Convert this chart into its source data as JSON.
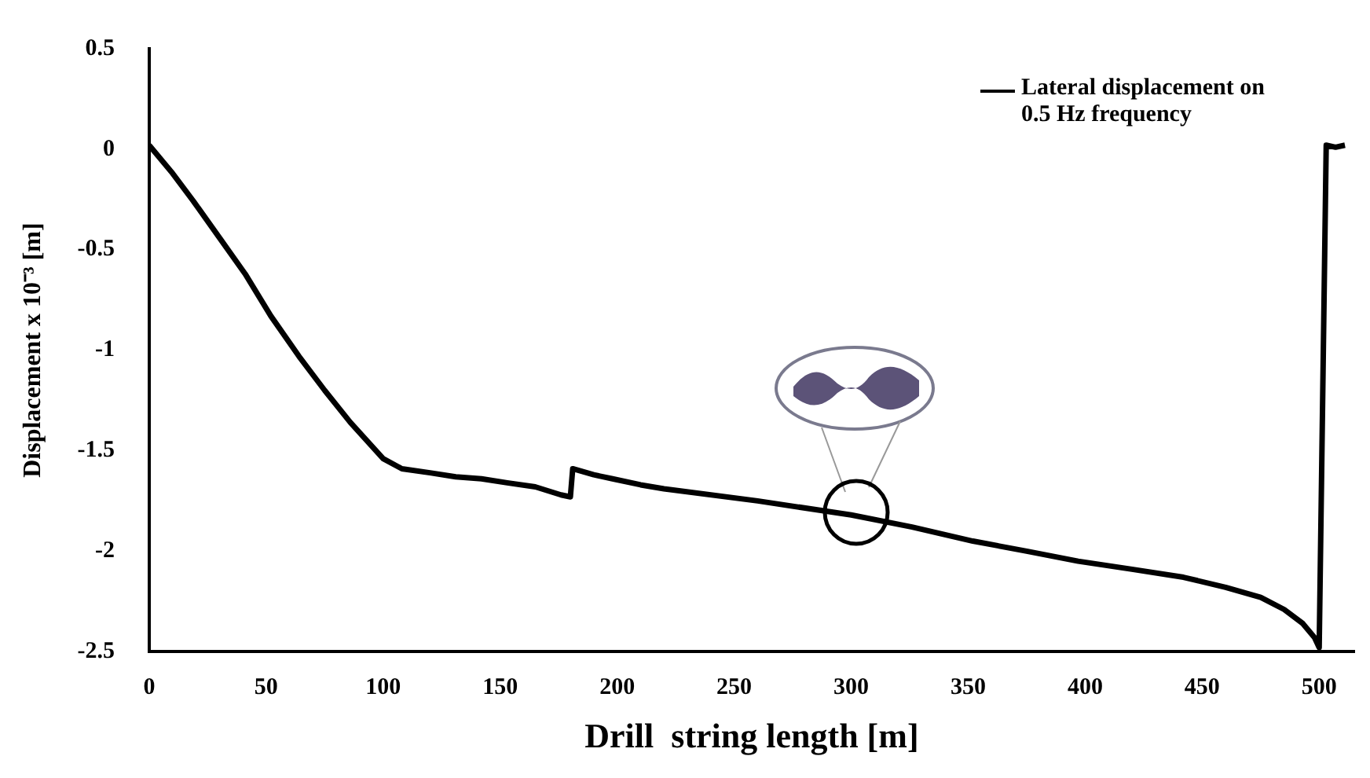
{
  "chart_data": {
    "type": "line",
    "xlabel": "Drill  string length [m]",
    "ylabel": "Displacement x 10⁻³ [m]",
    "xlim": [
      0,
      515
    ],
    "xticks": [
      0,
      50,
      100,
      150,
      200,
      250,
      300,
      350,
      400,
      450,
      500
    ],
    "ylim": [
      -2.5,
      0.5
    ],
    "yticks": [
      -2.5,
      -2,
      -1.5,
      -1,
      -0.5,
      0,
      0.5
    ],
    "grid": false,
    "legend": "top right",
    "marker": "none",
    "line_style": "solid",
    "series": [
      {
        "name": "Lateral displacement on 0.5 Hz frequency",
        "color": "#000000",
        "x": [
          0,
          10,
          19,
          30,
          41,
          52,
          64,
          75,
          86,
          100,
          108,
          120,
          131,
          142,
          153,
          165,
          176,
          180,
          181,
          190,
          198,
          210,
          220,
          260,
          300,
          326,
          352,
          375,
          397,
          420,
          442,
          460,
          475,
          485,
          493,
          498,
          500,
          503,
          507,
          511
        ],
        "values": [
          0.02,
          -0.12,
          -0.26,
          -0.44,
          -0.62,
          -0.83,
          -1.03,
          -1.2,
          -1.36,
          -1.54,
          -1.59,
          -1.61,
          -1.63,
          -1.64,
          -1.66,
          -1.68,
          -1.72,
          -1.73,
          -1.59,
          -1.62,
          -1.64,
          -1.67,
          -1.69,
          -1.75,
          -1.82,
          -1.88,
          -1.95,
          -2.0,
          -2.05,
          -2.09,
          -2.13,
          -2.18,
          -2.23,
          -2.29,
          -2.36,
          -2.43,
          -2.48,
          0.02,
          0.01,
          0.02
        ]
      }
    ]
  }
}
